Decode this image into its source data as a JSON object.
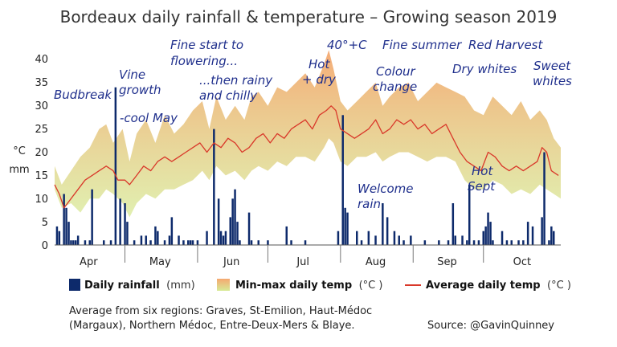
{
  "chart_data": {
    "type": "bar",
    "title": "Bordeaux daily rainfall & temperature – Growing season 2019",
    "y_unit_labels": [
      "°C",
      "mm"
    ],
    "ylim": [
      0,
      40
    ],
    "yticks": [
      "0",
      "5",
      "10",
      "15",
      "20",
      "25",
      "30",
      "35",
      "40"
    ],
    "months": [
      "Apr",
      "May",
      "Jun",
      "Jul",
      "Aug",
      "Sep",
      "Oct"
    ],
    "x_range_days": [
      1,
      217
    ],
    "legend": {
      "rain": {
        "label": "Daily rainfall",
        "unit": "(mm)",
        "color": "#0d2a6b"
      },
      "band": {
        "label": "Min-max daily temp",
        "unit": "(°C )",
        "color_top": "#f5a870",
        "color_bottom": "#d7ea96"
      },
      "avg": {
        "label": "Average daily temp",
        "unit": "(°C )",
        "color": "#d9382a"
      }
    },
    "series": [
      {
        "name": "Daily rainfall",
        "points": [
          [
            2,
            4
          ],
          [
            3,
            3
          ],
          [
            5,
            11
          ],
          [
            6,
            8
          ],
          [
            7,
            5
          ],
          [
            8,
            1
          ],
          [
            9,
            1
          ],
          [
            10,
            1
          ],
          [
            11,
            2
          ],
          [
            14,
            1
          ],
          [
            16,
            1
          ],
          [
            17,
            12
          ],
          [
            22,
            1
          ],
          [
            25,
            1
          ],
          [
            27,
            34
          ],
          [
            29,
            10
          ],
          [
            31,
            9
          ],
          [
            32,
            5
          ],
          [
            35,
            1
          ],
          [
            38,
            2
          ],
          [
            40,
            2
          ],
          [
            42,
            1
          ],
          [
            44,
            4
          ],
          [
            45,
            3
          ],
          [
            48,
            1
          ],
          [
            50,
            2
          ],
          [
            51,
            6
          ],
          [
            54,
            2
          ],
          [
            56,
            1
          ],
          [
            58,
            1
          ],
          [
            59,
            1
          ],
          [
            60,
            1
          ],
          [
            62,
            1
          ],
          [
            66,
            3
          ],
          [
            69,
            25
          ],
          [
            71,
            10
          ],
          [
            72,
            3
          ],
          [
            73,
            2
          ],
          [
            74,
            3
          ],
          [
            76,
            6
          ],
          [
            77,
            10
          ],
          [
            78,
            12
          ],
          [
            79,
            5
          ],
          [
            80,
            1
          ],
          [
            84,
            7
          ],
          [
            85,
            1
          ],
          [
            88,
            1
          ],
          [
            92,
            1
          ],
          [
            100,
            4
          ],
          [
            102,
            1
          ],
          [
            108,
            1
          ],
          [
            122,
            3
          ],
          [
            124,
            28
          ],
          [
            125,
            8
          ],
          [
            126,
            7
          ],
          [
            130,
            3
          ],
          [
            132,
            1
          ],
          [
            135,
            3
          ],
          [
            138,
            2
          ],
          [
            141,
            9
          ],
          [
            143,
            6
          ],
          [
            146,
            3
          ],
          [
            148,
            2
          ],
          [
            150,
            1
          ],
          [
            153,
            2
          ],
          [
            159,
            1
          ],
          [
            165,
            1
          ],
          [
            169,
            1
          ],
          [
            171,
            9
          ],
          [
            172,
            2
          ],
          [
            175,
            2
          ],
          [
            177,
            1
          ],
          [
            178,
            13
          ],
          [
            180,
            1
          ],
          [
            182,
            1
          ],
          [
            184,
            3
          ],
          [
            185,
            4
          ],
          [
            186,
            7
          ],
          [
            187,
            5
          ],
          [
            188,
            1
          ],
          [
            192,
            3
          ],
          [
            194,
            1
          ],
          [
            196,
            1
          ],
          [
            199,
            1
          ],
          [
            201,
            1
          ],
          [
            203,
            5
          ],
          [
            205,
            4
          ],
          [
            209,
            6
          ],
          [
            210,
            20
          ],
          [
            212,
            1
          ],
          [
            213,
            4
          ],
          [
            214,
            3
          ]
        ]
      },
      {
        "name": "Min-max daily temp",
        "max_points": [
          [
            1,
            17
          ],
          [
            4,
            13
          ],
          [
            8,
            16
          ],
          [
            12,
            19
          ],
          [
            16,
            21
          ],
          [
            20,
            25
          ],
          [
            23,
            26
          ],
          [
            26,
            22
          ],
          [
            30,
            25
          ],
          [
            33,
            18
          ],
          [
            36,
            24
          ],
          [
            40,
            27
          ],
          [
            44,
            22
          ],
          [
            48,
            28
          ],
          [
            52,
            24
          ],
          [
            56,
            26
          ],
          [
            60,
            29
          ],
          [
            64,
            31
          ],
          [
            67,
            25
          ],
          [
            70,
            32
          ],
          [
            74,
            27
          ],
          [
            78,
            30
          ],
          [
            82,
            27
          ],
          [
            85,
            32
          ],
          [
            88,
            33
          ],
          [
            92,
            30
          ],
          [
            96,
            34
          ],
          [
            100,
            33
          ],
          [
            104,
            35
          ],
          [
            108,
            37
          ],
          [
            112,
            34
          ],
          [
            116,
            39
          ],
          [
            118,
            42
          ],
          [
            120,
            38
          ],
          [
            123,
            31
          ],
          [
            126,
            29
          ],
          [
            130,
            31
          ],
          [
            134,
            33
          ],
          [
            138,
            35
          ],
          [
            141,
            30
          ],
          [
            144,
            32
          ],
          [
            148,
            34
          ],
          [
            152,
            35
          ],
          [
            156,
            31
          ],
          [
            160,
            33
          ],
          [
            164,
            35
          ],
          [
            168,
            34
          ],
          [
            172,
            33
          ],
          [
            176,
            32
          ],
          [
            180,
            29
          ],
          [
            184,
            28
          ],
          [
            188,
            32
          ],
          [
            192,
            30
          ],
          [
            196,
            28
          ],
          [
            200,
            31
          ],
          [
            204,
            27
          ],
          [
            208,
            29
          ],
          [
            211,
            27
          ],
          [
            214,
            23
          ],
          [
            217,
            21
          ]
        ],
        "min_points": [
          [
            1,
            12
          ],
          [
            4,
            8
          ],
          [
            8,
            9
          ],
          [
            12,
            7
          ],
          [
            16,
            10
          ],
          [
            20,
            10
          ],
          [
            23,
            12
          ],
          [
            26,
            11
          ],
          [
            30,
            9
          ],
          [
            33,
            6
          ],
          [
            36,
            9
          ],
          [
            40,
            11
          ],
          [
            44,
            10
          ],
          [
            48,
            12
          ],
          [
            52,
            12
          ],
          [
            56,
            13
          ],
          [
            60,
            14
          ],
          [
            64,
            16
          ],
          [
            67,
            14
          ],
          [
            70,
            17
          ],
          [
            74,
            15
          ],
          [
            78,
            16
          ],
          [
            82,
            14
          ],
          [
            85,
            16
          ],
          [
            88,
            17
          ],
          [
            92,
            16
          ],
          [
            96,
            18
          ],
          [
            100,
            17
          ],
          [
            104,
            19
          ],
          [
            108,
            19
          ],
          [
            112,
            18
          ],
          [
            116,
            21
          ],
          [
            118,
            23
          ],
          [
            120,
            22
          ],
          [
            123,
            18
          ],
          [
            126,
            17
          ],
          [
            130,
            19
          ],
          [
            134,
            19
          ],
          [
            138,
            20
          ],
          [
            141,
            18
          ],
          [
            144,
            19
          ],
          [
            148,
            20
          ],
          [
            152,
            20
          ],
          [
            156,
            19
          ],
          [
            160,
            18
          ],
          [
            164,
            19
          ],
          [
            168,
            19
          ],
          [
            172,
            18
          ],
          [
            176,
            14
          ],
          [
            180,
            12
          ],
          [
            184,
            12
          ],
          [
            188,
            14
          ],
          [
            192,
            13
          ],
          [
            196,
            11
          ],
          [
            200,
            12
          ],
          [
            204,
            11
          ],
          [
            208,
            13
          ],
          [
            211,
            12
          ],
          [
            214,
            11
          ],
          [
            217,
            10
          ]
        ]
      },
      {
        "name": "Average daily temp",
        "points": [
          [
            1,
            13
          ],
          [
            3,
            11
          ],
          [
            5,
            8
          ],
          [
            8,
            10
          ],
          [
            11,
            12
          ],
          [
            14,
            14
          ],
          [
            17,
            15
          ],
          [
            20,
            16
          ],
          [
            23,
            17
          ],
          [
            26,
            16
          ],
          [
            28,
            14
          ],
          [
            31,
            14
          ],
          [
            33,
            13
          ],
          [
            36,
            15
          ],
          [
            39,
            17
          ],
          [
            42,
            16
          ],
          [
            45,
            18
          ],
          [
            48,
            19
          ],
          [
            51,
            18
          ],
          [
            54,
            19
          ],
          [
            57,
            20
          ],
          [
            60,
            21
          ],
          [
            63,
            22
          ],
          [
            66,
            20
          ],
          [
            69,
            22
          ],
          [
            72,
            21
          ],
          [
            75,
            23
          ],
          [
            78,
            22
          ],
          [
            81,
            20
          ],
          [
            84,
            21
          ],
          [
            87,
            23
          ],
          [
            90,
            24
          ],
          [
            93,
            22
          ],
          [
            96,
            24
          ],
          [
            99,
            23
          ],
          [
            102,
            25
          ],
          [
            105,
            26
          ],
          [
            108,
            27
          ],
          [
            111,
            25
          ],
          [
            114,
            28
          ],
          [
            117,
            29
          ],
          [
            119,
            30
          ],
          [
            121,
            29
          ],
          [
            123,
            25
          ],
          [
            126,
            24
          ],
          [
            129,
            23
          ],
          [
            132,
            24
          ],
          [
            135,
            25
          ],
          [
            138,
            27
          ],
          [
            141,
            24
          ],
          [
            144,
            25
          ],
          [
            147,
            27
          ],
          [
            150,
            26
          ],
          [
            153,
            27
          ],
          [
            156,
            25
          ],
          [
            159,
            26
          ],
          [
            162,
            24
          ],
          [
            165,
            25
          ],
          [
            168,
            26
          ],
          [
            171,
            23
          ],
          [
            174,
            20
          ],
          [
            177,
            18
          ],
          [
            180,
            17
          ],
          [
            183,
            16
          ],
          [
            186,
            20
          ],
          [
            189,
            19
          ],
          [
            192,
            17
          ],
          [
            195,
            16
          ],
          [
            198,
            17
          ],
          [
            201,
            16
          ],
          [
            204,
            17
          ],
          [
            207,
            18
          ],
          [
            209,
            21
          ],
          [
            211,
            20
          ],
          [
            213,
            16
          ],
          [
            216,
            15
          ]
        ]
      }
    ]
  },
  "annotations": {
    "budbreak": "Budbreak",
    "vine_1": "Vine",
    "vine_2": "growth",
    "cool": "-cool May",
    "fine_1": "Fine start to",
    "fine_2": "flowering...",
    "rainy_1": "...then rainy",
    "rainy_2": "and chilly",
    "hot_1": "Hot",
    "hot_2": "+ dry",
    "forty": "40°+C",
    "welcome_1": "Welcome",
    "welcome_2": "rain",
    "colour_1": "Colour",
    "colour_2": "change",
    "summer": "Fine summer",
    "red": "Red Harvest",
    "dry": "Dry whites",
    "sweet_1": "Sweet",
    "sweet_2": "whites",
    "sept_1": "Hot",
    "sept_2": "Sept"
  },
  "footer": {
    "note_1": "Average from six regions: Graves, St-Emilion, Haut-Médoc",
    "note_2": "(Margaux), Northern Médoc, Entre-Deux-Mers & Blaye.",
    "source": "Source: @GavinQuinney"
  }
}
